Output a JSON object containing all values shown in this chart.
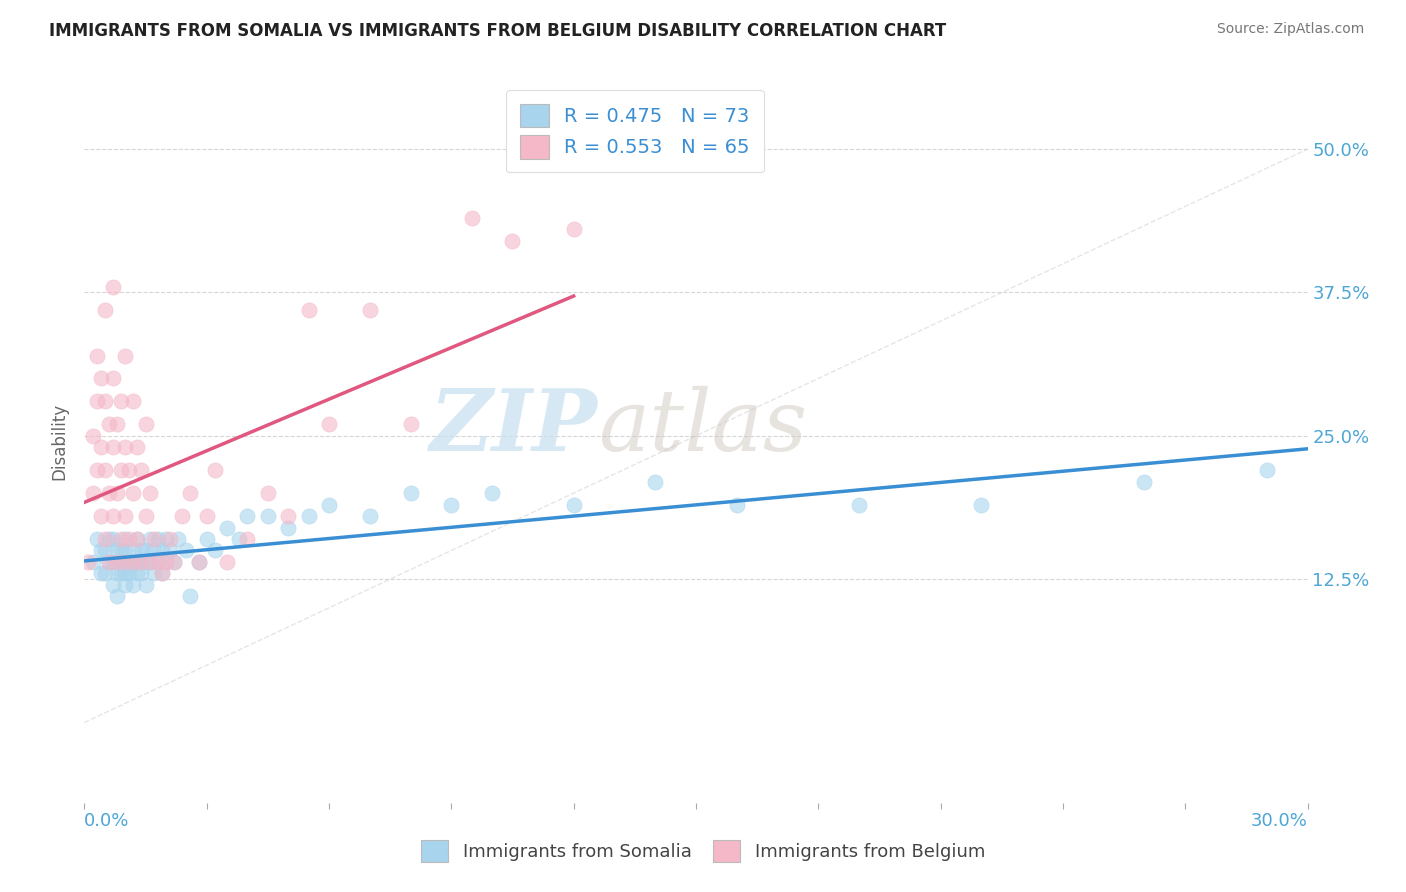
{
  "title": "IMMIGRANTS FROM SOMALIA VS IMMIGRANTS FROM BELGIUM DISABILITY CORRELATION CHART",
  "source": "Source: ZipAtlas.com",
  "ylabel": "Disability",
  "ylabel_right_labels": [
    "12.5%",
    "25.0%",
    "37.5%",
    "50.0%"
  ],
  "ylabel_right_values": [
    0.125,
    0.25,
    0.375,
    0.5
  ],
  "xlim": [
    0.0,
    0.3
  ],
  "ylim": [
    -0.07,
    0.56
  ],
  "legend_somalia": "R = 0.475   N = 73",
  "legend_belgium": "R = 0.553   N = 65",
  "color_somalia": "#a8d4ed",
  "color_belgium": "#f4b8c8",
  "color_somalia_line": "#3a8fd4",
  "color_belgium_line": "#e05880",
  "watermark_zip": "ZIP",
  "watermark_atlas": "atlas",
  "somalia_scatter_x": [
    0.002,
    0.003,
    0.004,
    0.004,
    0.005,
    0.005,
    0.006,
    0.006,
    0.007,
    0.007,
    0.007,
    0.008,
    0.008,
    0.008,
    0.008,
    0.009,
    0.009,
    0.009,
    0.01,
    0.01,
    0.01,
    0.01,
    0.01,
    0.011,
    0.011,
    0.012,
    0.012,
    0.012,
    0.013,
    0.013,
    0.013,
    0.014,
    0.014,
    0.014,
    0.015,
    0.015,
    0.015,
    0.016,
    0.016,
    0.017,
    0.017,
    0.018,
    0.018,
    0.019,
    0.019,
    0.02,
    0.02,
    0.021,
    0.022,
    0.023,
    0.025,
    0.026,
    0.028,
    0.03,
    0.032,
    0.035,
    0.038,
    0.04,
    0.045,
    0.05,
    0.055,
    0.06,
    0.07,
    0.08,
    0.09,
    0.1,
    0.12,
    0.14,
    0.16,
    0.19,
    0.22,
    0.26,
    0.29
  ],
  "somalia_scatter_y": [
    0.14,
    0.16,
    0.15,
    0.13,
    0.15,
    0.13,
    0.14,
    0.16,
    0.14,
    0.12,
    0.16,
    0.14,
    0.13,
    0.15,
    0.11,
    0.14,
    0.13,
    0.15,
    0.14,
    0.13,
    0.15,
    0.12,
    0.16,
    0.14,
    0.13,
    0.15,
    0.14,
    0.12,
    0.14,
    0.13,
    0.16,
    0.15,
    0.13,
    0.14,
    0.15,
    0.14,
    0.12,
    0.14,
    0.16,
    0.15,
    0.13,
    0.14,
    0.16,
    0.13,
    0.15,
    0.14,
    0.16,
    0.15,
    0.14,
    0.16,
    0.15,
    0.11,
    0.14,
    0.16,
    0.15,
    0.17,
    0.16,
    0.18,
    0.18,
    0.17,
    0.18,
    0.19,
    0.18,
    0.2,
    0.19,
    0.2,
    0.19,
    0.21,
    0.19,
    0.19,
    0.19,
    0.21,
    0.22
  ],
  "belgium_scatter_x": [
    0.001,
    0.002,
    0.002,
    0.003,
    0.003,
    0.003,
    0.004,
    0.004,
    0.004,
    0.005,
    0.005,
    0.005,
    0.005,
    0.006,
    0.006,
    0.006,
    0.007,
    0.007,
    0.007,
    0.007,
    0.008,
    0.008,
    0.008,
    0.009,
    0.009,
    0.009,
    0.01,
    0.01,
    0.01,
    0.01,
    0.011,
    0.011,
    0.012,
    0.012,
    0.012,
    0.013,
    0.013,
    0.014,
    0.014,
    0.015,
    0.015,
    0.016,
    0.016,
    0.017,
    0.018,
    0.019,
    0.02,
    0.021,
    0.022,
    0.024,
    0.026,
    0.028,
    0.03,
    0.032,
    0.035,
    0.04,
    0.045,
    0.05,
    0.055,
    0.06,
    0.07,
    0.08,
    0.095,
    0.105,
    0.12
  ],
  "belgium_scatter_y": [
    0.14,
    0.2,
    0.25,
    0.22,
    0.28,
    0.32,
    0.18,
    0.24,
    0.3,
    0.16,
    0.22,
    0.28,
    0.36,
    0.2,
    0.26,
    0.14,
    0.18,
    0.24,
    0.3,
    0.38,
    0.14,
    0.2,
    0.26,
    0.16,
    0.22,
    0.28,
    0.14,
    0.18,
    0.24,
    0.32,
    0.16,
    0.22,
    0.14,
    0.2,
    0.28,
    0.16,
    0.24,
    0.14,
    0.22,
    0.18,
    0.26,
    0.14,
    0.2,
    0.16,
    0.14,
    0.13,
    0.14,
    0.16,
    0.14,
    0.18,
    0.2,
    0.14,
    0.18,
    0.22,
    0.14,
    0.16,
    0.2,
    0.18,
    0.36,
    0.26,
    0.36,
    0.26,
    0.44,
    0.42,
    0.43
  ]
}
